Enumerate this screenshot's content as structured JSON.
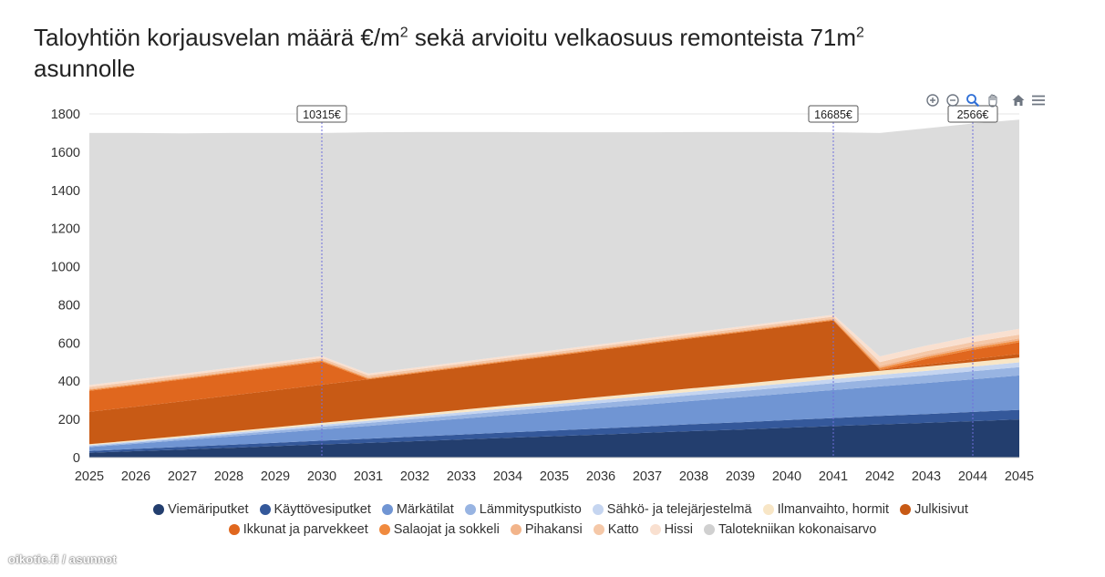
{
  "title": {
    "text_a": "Taloyhtiön korjausvelan määrä €/m",
    "sup_a": "2",
    "text_b": " sekä arvioitu velkaosuus remonteista 71m",
    "sup_b": "2",
    "text_c": " asunnolle"
  },
  "toolbar": {
    "items": [
      {
        "name": "zoom-in-icon",
        "color": "#6e7681"
      },
      {
        "name": "zoom-out-icon",
        "color": "#6e7681"
      },
      {
        "name": "zoom-select-icon",
        "color": "#2f6fd6"
      },
      {
        "name": "pan-hand-icon",
        "color": "#6e7681"
      },
      {
        "name": "home-reset-icon",
        "color": "#6e7681"
      },
      {
        "name": "menu-icon",
        "color": "#6e7681"
      }
    ]
  },
  "watermark": "oikotie.fi / asunnot",
  "chart_data": {
    "type": "area",
    "stacked": true,
    "x": [
      2025,
      2026,
      2027,
      2028,
      2029,
      2030,
      2031,
      2032,
      2033,
      2034,
      2035,
      2036,
      2037,
      2038,
      2039,
      2040,
      2041,
      2042,
      2043,
      2044,
      2045
    ],
    "ylim": [
      0,
      1800
    ],
    "yticks": [
      0,
      200,
      400,
      600,
      800,
      1000,
      1200,
      1400,
      1600,
      1800
    ],
    "grid": true,
    "legend_position": "bottom",
    "annotations": [
      {
        "x": 2030,
        "label": "10315€"
      },
      {
        "x": 2041,
        "label": "16685€"
      },
      {
        "x": 2044,
        "label": "2566€"
      }
    ],
    "series": [
      {
        "name": "Viemäriputket",
        "color": "#233e6e",
        "values": [
          25,
          34,
          42,
          51,
          60,
          69,
          77,
          86,
          95,
          104,
          112,
          121,
          130,
          139,
          147,
          156,
          165,
          174,
          182,
          191,
          200
        ]
      },
      {
        "name": "Käyttövesiputket",
        "color": "#34589a",
        "values": [
          10,
          12,
          14,
          16,
          18,
          20,
          22,
          24,
          26,
          28,
          30,
          32,
          34,
          36,
          38,
          40,
          42,
          44,
          46,
          48,
          50
        ]
      },
      {
        "name": "Märkätilat",
        "color": "#7095d3",
        "values": [
          20,
          27,
          35,
          43,
          51,
          59,
          67,
          75,
          83,
          91,
          99,
          107,
          115,
          123,
          131,
          139,
          147,
          155,
          163,
          171,
          180
        ]
      },
      {
        "name": "Lämmitysputkisto",
        "color": "#98b4e2",
        "values": [
          5,
          6,
          8,
          10,
          12,
          14,
          16,
          18,
          20,
          22,
          24,
          26,
          28,
          30,
          32,
          34,
          36,
          38,
          40,
          42,
          44
        ]
      },
      {
        "name": "Sähkö- ja telejärjestelmä",
        "color": "#c5d5f0",
        "values": [
          5,
          6,
          7,
          8,
          9,
          10,
          11,
          12,
          13,
          14,
          15,
          16,
          17,
          18,
          19,
          20,
          21,
          22,
          23,
          24,
          25
        ]
      },
      {
        "name": "Ilmanvaihto, hormit",
        "color": "#f8e6c6",
        "values": [
          5,
          6,
          7,
          8,
          9,
          10,
          11,
          12,
          13,
          14,
          15,
          16,
          17,
          18,
          19,
          20,
          21,
          22,
          23,
          24,
          25
        ]
      },
      {
        "name": "Julkisivut",
        "color": "#c85a15",
        "values": [
          170,
          176,
          182,
          188,
          194,
          200,
          206,
          214,
          222,
          230,
          238,
          246,
          254,
          262,
          270,
          278,
          286,
          5,
          10,
          15,
          20
        ]
      },
      {
        "name": "Ikkunat ja parvekkeet",
        "color": "#e0671e",
        "values": [
          110,
          112,
          114,
          116,
          118,
          120,
          0,
          0,
          0,
          0,
          0,
          0,
          0,
          0,
          0,
          0,
          0,
          0,
          30,
          50,
          60
        ]
      },
      {
        "name": "Salaojat ja sokkeli",
        "color": "#f08a3e",
        "values": [
          5,
          5,
          5,
          5,
          5,
          5,
          5,
          5,
          5,
          5,
          5,
          5,
          5,
          5,
          5,
          5,
          5,
          10,
          10,
          10,
          10
        ]
      },
      {
        "name": "Pihakansi",
        "color": "#f2b48a",
        "values": [
          5,
          5,
          5,
          5,
          5,
          5,
          5,
          5,
          5,
          5,
          5,
          5,
          5,
          5,
          5,
          5,
          5,
          10,
          10,
          10,
          10
        ]
      },
      {
        "name": "Katto",
        "color": "#f5c8a8",
        "values": [
          10,
          10,
          10,
          10,
          10,
          10,
          10,
          10,
          10,
          10,
          10,
          10,
          10,
          10,
          10,
          10,
          10,
          20,
          20,
          20,
          20
        ]
      },
      {
        "name": "Hissi",
        "color": "#f9e0d0",
        "values": [
          10,
          10,
          10,
          10,
          10,
          10,
          10,
          10,
          10,
          10,
          10,
          10,
          10,
          10,
          10,
          10,
          10,
          30,
          30,
          30,
          30
        ]
      },
      {
        "name": "Talotekniikan kokonaisarvo",
        "color": "#dcdcdc",
        "values": [
          1320,
          1291,
          1260,
          1230,
          1199,
          1168,
          1264,
          1234,
          1203,
          1172,
          1141,
          1110,
          1079,
          1049,
          1019,
          988,
          956,
          1170,
          1138,
          1115,
          1096
        ]
      }
    ]
  }
}
